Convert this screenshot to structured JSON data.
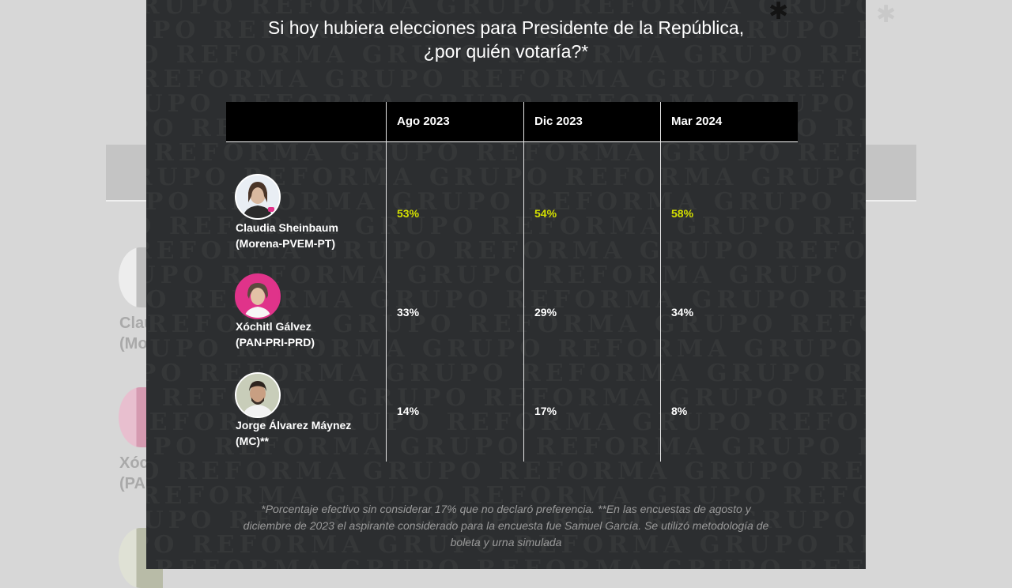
{
  "background": {
    "names": [
      "Claudia Sheinbaum",
      "(Morena-PVEM-PT)",
      "Xóchitl Gálvez",
      "(PAN-PRI-PRD)"
    ]
  },
  "modal": {
    "title_line1": "Si hoy hubiera elecciones para Presidente de la República,",
    "title_line2": "¿por quién votaría?*",
    "watermark_text": "GRUPO REFORMA",
    "table": {
      "columns": [
        "Ago 2023",
        "Dic 2023",
        "Mar 2024"
      ],
      "rows": [
        {
          "name": "Claudia Sheinbaum",
          "party": "(Morena-PVEM-PT)",
          "avatar_icon": "person-photo-icon",
          "values": [
            "53%",
            "54%",
            "58%"
          ],
          "highlight": true
        },
        {
          "name": "Xóchitl Gálvez",
          "party": "(PAN-PRI-PRD)",
          "avatar_icon": "person-photo-icon",
          "values": [
            "33%",
            "29%",
            "34%"
          ],
          "highlight": false
        },
        {
          "name": "Jorge Álvarez Máynez",
          "party": "(MC)**",
          "avatar_icon": "person-photo-icon",
          "values": [
            "14%",
            "17%",
            "8%"
          ],
          "highlight": false
        }
      ]
    },
    "footnote": "*Porcentaje efectivo sin considerar 17% que no declaró preferencia. **En las encuestas de agosto y diciembre de 2023 el aspirante considerado para la encuesta fue Samuel García. Se utilizó metodología de boleta y urna simulada",
    "colors": {
      "modal_bg": "#2c2e30",
      "header_bg": "#000000",
      "lead_value": "#d4e000",
      "avatar_pink": "#e0338a"
    }
  }
}
